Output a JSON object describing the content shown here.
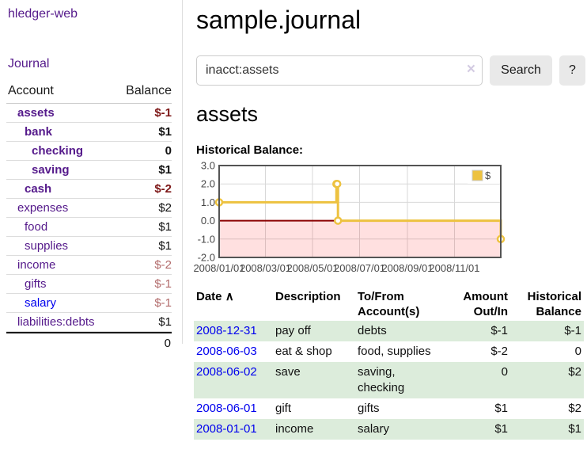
{
  "colors": {
    "link_purple": "#551a8b",
    "link_blue": "#0000ee",
    "negative_strong": "#7d1717",
    "negative_soft": "#b26b6b",
    "row_stripe_green": "#dcecdb",
    "button_gray": "#e9e9e9"
  },
  "sidebar": {
    "brand": "hledger-web",
    "journal_link": "Journal",
    "accounts": {
      "header_account": "Account",
      "header_balance": "Balance",
      "rows": [
        {
          "name": "assets",
          "balance": "$-1"
        },
        {
          "name": "bank",
          "balance": "$1"
        },
        {
          "name": "checking",
          "balance": "0"
        },
        {
          "name": "saving",
          "balance": "$1"
        },
        {
          "name": "cash",
          "balance": "$-2"
        },
        {
          "name": "expenses",
          "balance": "$2"
        },
        {
          "name": "food",
          "balance": "$1"
        },
        {
          "name": "supplies",
          "balance": "$1"
        },
        {
          "name": "income",
          "balance": "$-2"
        },
        {
          "name": "gifts",
          "balance": "$-1"
        },
        {
          "name": "salary",
          "balance": "$-1"
        },
        {
          "name": "liabilities:debts",
          "balance": "$1"
        }
      ],
      "total": "0"
    }
  },
  "main": {
    "title": "sample.journal",
    "search": {
      "value": "inacct:assets",
      "clear": "×",
      "button": "Search",
      "help": "?"
    },
    "account_heading": "assets",
    "chart_label": "Historical Balance:"
  },
  "chart_data": {
    "type": "line",
    "title": "Historical Balance",
    "steps": true,
    "x_range": [
      "2008-01-01",
      "2008-12-31"
    ],
    "y_range": [
      -2,
      3
    ],
    "x_ticks": [
      {
        "pos": "2008-01-01",
        "label": "2008/01/01"
      },
      {
        "pos": "2008-03-01",
        "label": "2008/03/01"
      },
      {
        "pos": "2008-05-01",
        "label": "2008/05/01"
      },
      {
        "pos": "2008-07-01",
        "label": "2008/07/01"
      },
      {
        "pos": "2008-09-01",
        "label": "2008/09/01"
      },
      {
        "pos": "2008-11-01",
        "label": "2008/11/01"
      }
    ],
    "y_ticks": [
      {
        "pos": 3,
        "label": "3.0"
      },
      {
        "pos": 2,
        "label": "2.0"
      },
      {
        "pos": 1,
        "label": "1.0"
      },
      {
        "pos": 0,
        "label": "0.0"
      },
      {
        "pos": -1,
        "label": "-1.0"
      },
      {
        "pos": -2,
        "label": "-2.0"
      }
    ],
    "series": [
      {
        "name": "$",
        "color": "#edc240",
        "points": [
          [
            "2008-01-01",
            1
          ],
          [
            "2008-06-01",
            2
          ],
          [
            "2008-06-02",
            2
          ],
          [
            "2008-06-03",
            0
          ],
          [
            "2008-12-31",
            -1
          ]
        ]
      }
    ],
    "legend_position": "top-right",
    "grid_color": "#d8d8d8",
    "border_color": "#545454",
    "zero_line_color": "#8b0000",
    "negative_region_fill": "rgba(255,0,0,0.12)"
  },
  "transactions": {
    "headers": {
      "date": "Date",
      "sort_icon": "∧",
      "description": "Description",
      "accounts": "To/From Account(s)",
      "amount": "Amount Out/In",
      "balance": "Historical Balance"
    },
    "rows": [
      {
        "date": "2008-12-31",
        "description": "pay off",
        "accounts": "debts",
        "amount": "$-1",
        "balance": "$-1"
      },
      {
        "date": "2008-06-03",
        "description": "eat & shop",
        "accounts": "food, supplies",
        "amount": "$-2",
        "balance": "0"
      },
      {
        "date": "2008-06-02",
        "description": "save",
        "accounts": "saving, checking",
        "amount": "0",
        "balance": "$2"
      },
      {
        "date": "2008-06-01",
        "description": "gift",
        "accounts": "gifts",
        "amount": "$1",
        "balance": "$2"
      },
      {
        "date": "2008-01-01",
        "description": "income",
        "accounts": "salary",
        "amount": "$1",
        "balance": "$1"
      }
    ]
  }
}
